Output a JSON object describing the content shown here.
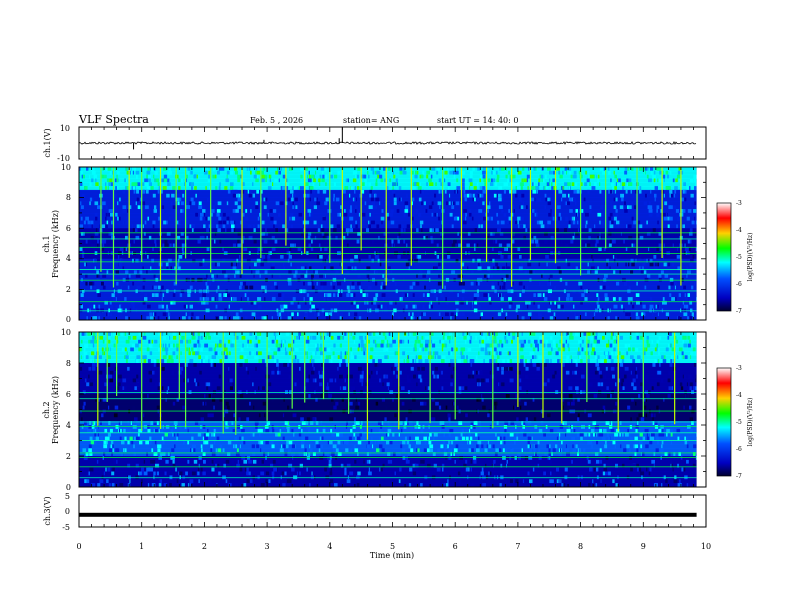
{
  "header": {
    "title": "VLF Spectra",
    "date": "Feb. 5 , 2026",
    "station": "station= ANG",
    "start": "start  UT =   14: 40: 0"
  },
  "colorbar": {
    "label": "log(PSD)(V²/Hz)",
    "ticks": [
      "-3",
      "-4",
      "-5",
      "-6",
      "-7"
    ],
    "colors": [
      "#ffffff",
      "#ff0000",
      "#ffd000",
      "#00ff00",
      "#00ffff",
      "#0050ff",
      "#0000c0",
      "#000030"
    ]
  },
  "chart_data": [
    {
      "type": "line",
      "name": "ch.1 waveform",
      "ylabel": "ch.1(V)",
      "ylim": [
        -10,
        10
      ],
      "y_ticks": [
        "10",
        "-10"
      ],
      "baseline": 0,
      "spikes_min": [
        0.87,
        2.95,
        4.15,
        4.2
      ],
      "spike_values": [
        -4,
        2,
        3,
        10
      ]
    },
    {
      "type": "heatmap",
      "name": "ch.1 spectrogram",
      "ylabel_line1": "ch.1",
      "ylabel_line2": "Frequency (kHz)",
      "ylim": [
        0,
        10
      ],
      "y_ticks": [
        "0",
        "2",
        "4",
        "6",
        "8",
        "10"
      ],
      "zlim": [
        -7,
        -3
      ],
      "lines_khz": [
        0.6,
        1.2,
        1.9,
        2.6,
        3.0,
        3.3,
        3.8,
        4.35,
        4.75,
        5.3,
        5.7
      ],
      "burst_min": [
        0.35,
        0.55,
        0.8,
        1.0,
        1.3,
        1.55,
        1.7,
        2.1,
        2.6,
        2.9,
        3.3,
        3.6,
        4.0,
        4.2,
        4.5,
        4.9,
        5.3,
        5.8,
        6.1,
        6.5,
        6.9,
        7.2,
        7.6,
        8.0,
        8.4,
        8.9,
        9.3,
        9.6
      ]
    },
    {
      "type": "heatmap",
      "name": "ch.2 spectrogram",
      "ylabel_line1": "ch.2",
      "ylabel_line2": "Frequency (kHz)",
      "ylim": [
        0,
        10
      ],
      "y_ticks": [
        "0",
        "2",
        "4",
        "6",
        "8",
        "10"
      ],
      "zlim": [
        -7,
        -3
      ],
      "lines_khz": [
        0.6,
        1.3,
        1.9,
        2.2,
        3.0,
        3.5,
        3.9,
        4.2,
        4.9,
        5.7,
        6.1
      ],
      "burst_min": [
        0.3,
        0.45,
        0.6,
        1.0,
        1.3,
        1.6,
        1.7,
        2.3,
        2.5,
        3.0,
        3.4,
        3.6,
        3.9,
        4.3,
        4.6,
        5.1,
        5.6,
        6.0,
        6.6,
        7.0,
        7.4,
        7.7,
        8.1,
        8.6,
        9.0,
        9.5
      ]
    },
    {
      "type": "line",
      "name": "ch.3 waveform",
      "ylabel": "ch.3(V)",
      "ylim": [
        -5,
        5
      ],
      "y_ticks": [
        "5",
        "0",
        "-5"
      ],
      "baseline": -1.2
    }
  ],
  "x_axis": {
    "label": "Time (min)",
    "ticks": [
      "0",
      "1",
      "2",
      "3",
      "4",
      "5",
      "6",
      "7",
      "8",
      "9",
      "10"
    ],
    "xlim": [
      0,
      10
    ],
    "data_end_min": 9.85
  }
}
